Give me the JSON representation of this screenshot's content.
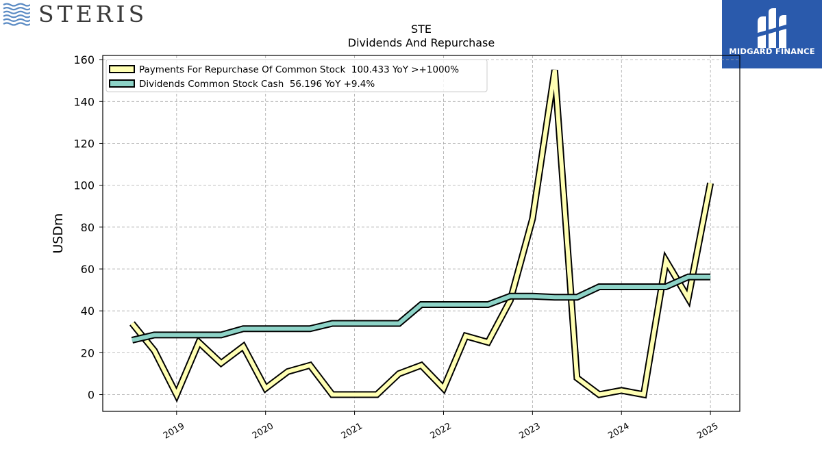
{
  "header": {
    "company_logo": {
      "text": "STERIS",
      "icon": "wave-lines-icon",
      "color": "#5b8bc4"
    },
    "brand_logo": {
      "text": "MIDGARD FINANCE",
      "icon": "midgard-m-icon",
      "bg": "#2a5aac"
    }
  },
  "chart_data": {
    "type": "line",
    "title": "STE",
    "subtitle": "Dividends And Repurchase",
    "xlabel": "",
    "ylabel": "USDm",
    "ylim": [
      -8,
      162
    ],
    "xlim": [
      2018.17,
      2025.33
    ],
    "yticks": [
      0,
      20,
      40,
      60,
      80,
      100,
      120,
      140,
      160
    ],
    "xticks": [
      {
        "label": "2019",
        "value": 2019.0
      },
      {
        "label": "2020",
        "value": 2020.0
      },
      {
        "label": "2021",
        "value": 2021.0
      },
      {
        "label": "2022",
        "value": 2022.0
      },
      {
        "label": "2023",
        "value": 2023.0
      },
      {
        "label": "2024",
        "value": 2024.0
      },
      {
        "label": "2025",
        "value": 2025.0
      }
    ],
    "grid": true,
    "legend_position": "top-left",
    "series": [
      {
        "name": "Payments For Repurchase Of Common Stock  100.433 YoY >+1000%",
        "color": "#ffffb3",
        "x": [
          2018.5,
          2018.75,
          2019.0,
          2019.25,
          2019.5,
          2019.75,
          2020.0,
          2020.25,
          2020.5,
          2020.75,
          2021.0,
          2021.25,
          2021.5,
          2021.75,
          2022.0,
          2022.25,
          2022.5,
          2022.75,
          2023.0,
          2023.25,
          2023.5,
          2023.75,
          2024.0,
          2024.25,
          2024.5,
          2024.75,
          2025.0
        ],
        "values": [
          34,
          21,
          0,
          25,
          15,
          23,
          3,
          11,
          14,
          0,
          0,
          0,
          10,
          14,
          3,
          28,
          25,
          45,
          84,
          155,
          8,
          0,
          2,
          0,
          64,
          46,
          101
        ]
      },
      {
        "name": "Dividends Common Stock Cash  56.196 YoY +9.4%",
        "color": "#8dd3c7",
        "x": [
          2018.5,
          2018.75,
          2019.0,
          2019.25,
          2019.5,
          2019.75,
          2020.0,
          2020.25,
          2020.5,
          2020.75,
          2021.0,
          2021.25,
          2021.5,
          2021.75,
          2022.0,
          2022.25,
          2022.5,
          2022.75,
          2023.0,
          2023.25,
          2023.5,
          2023.75,
          2024.0,
          2024.25,
          2024.5,
          2024.75,
          2025.0
        ],
        "values": [
          26,
          28.5,
          28.5,
          28.5,
          28.5,
          31.5,
          31.5,
          31.5,
          31.5,
          34,
          34,
          34,
          34,
          43,
          43,
          43,
          43,
          47,
          47,
          46.5,
          46.5,
          51.5,
          51.5,
          51.5,
          51.5,
          56.2,
          56.2
        ]
      }
    ]
  }
}
